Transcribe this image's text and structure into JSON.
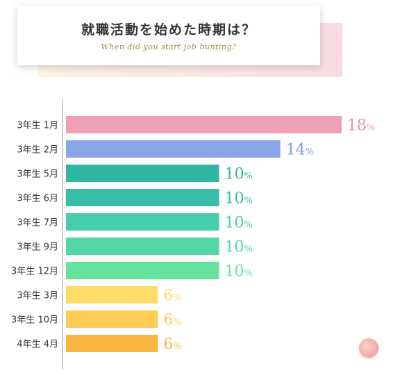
{
  "header": {
    "title": "就職活動を始めた時期は？",
    "subtitle": "When did you start job hunting?"
  },
  "chart_data": {
    "type": "bar",
    "orientation": "horizontal",
    "categories": [
      "3年生 1月",
      "3年生 2月",
      "3年生 5月",
      "3年生 6月",
      "3年生 7月",
      "3年生 9月",
      "3年生 12月",
      "3年生 3月",
      "3年生 10月",
      "4年生 4月"
    ],
    "values": [
      18,
      14,
      10,
      10,
      10,
      10,
      10,
      6,
      6,
      6
    ],
    "unit": "%",
    "colors": [
      "#f0a0b4",
      "#87a7e6",
      "#2fb7a1",
      "#38bea6",
      "#46cdab",
      "#52d6a3",
      "#66e39e",
      "#ffdc67",
      "#ffcd55",
      "#f8b540"
    ],
    "label_colors": [
      "#ef8fab",
      "#7d9be0",
      "#2fb7a1",
      "#38bea6",
      "#46cdab",
      "#52d6a3",
      "#66e39e",
      "#ffdc67",
      "#ffcd55",
      "#f8b540"
    ],
    "xlim": [
      0,
      18
    ],
    "grid": false
  }
}
